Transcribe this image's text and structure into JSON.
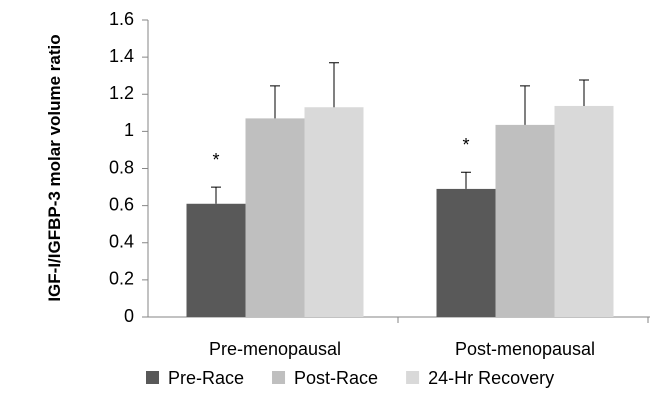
{
  "chart_data": {
    "type": "bar",
    "y_label": "IGF-I/IGFBP-3 molar volume ratio",
    "categories": [
      "Pre-menopausal",
      "Post-menopausal"
    ],
    "series": [
      {
        "name": "Pre-Race",
        "color": "#595959",
        "values": [
          0.61,
          0.69
        ],
        "errors": [
          0.09,
          0.09
        ]
      },
      {
        "name": "Post-Race",
        "color": "#bfbfbf",
        "values": [
          1.07,
          1.035
        ],
        "errors": [
          0.175,
          0.21
        ]
      },
      {
        "name": "24-Hr Recovery",
        "color": "#d9d9d9",
        "values": [
          1.13,
          1.137
        ],
        "errors": [
          0.24,
          0.14
        ]
      }
    ],
    "annotations": [
      "*",
      "*"
    ],
    "ylim": [
      0,
      1.6
    ],
    "yticks": [
      0,
      0.2,
      0.4,
      0.6,
      0.8,
      1,
      1.2,
      1.4,
      1.6
    ],
    "grid": false,
    "legend": "bottom"
  }
}
